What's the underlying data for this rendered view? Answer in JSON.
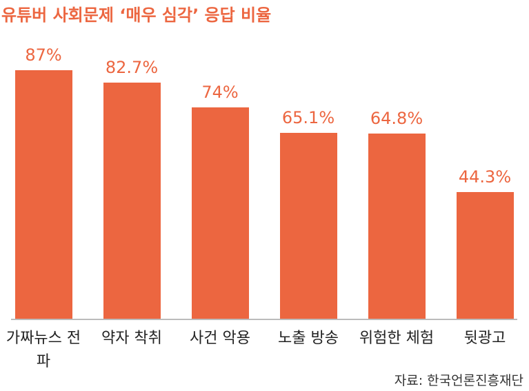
{
  "chart_data": {
    "type": "bar",
    "title": "유튜버 사회문제 ‘매우 심각’ 응답 비율",
    "categories": [
      "가짜뉴스 전파",
      "약자 착취",
      "사건 악용",
      "노출 방송",
      "위험한 체험",
      "뒷광고"
    ],
    "values": [
      87,
      82.7,
      74,
      65.1,
      64.8,
      44.3
    ],
    "value_labels": [
      "87%",
      "82.7%",
      "74%",
      "65.1%",
      "64.8%",
      "44.3%"
    ],
    "color": "#ec6640",
    "source": "자료: 한국언론진흥재단"
  }
}
